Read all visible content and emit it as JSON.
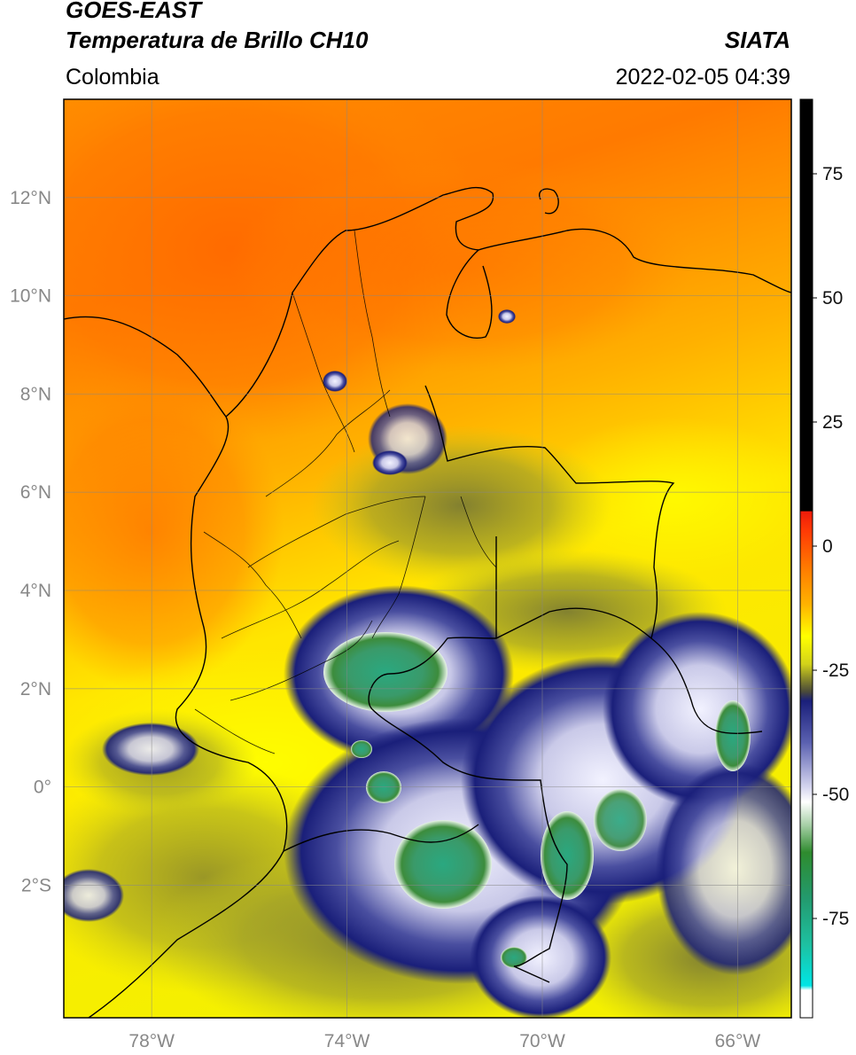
{
  "header": {
    "title_line1": "GOES-EAST",
    "title_line2": "Temperatura de Brillo CH10",
    "region": "Colombia",
    "brand": "SIATA",
    "datetime": "2022-02-05 04:39"
  },
  "map": {
    "lon_ticks": [
      "78°W",
      "74°W",
      "70°W",
      "66°W"
    ],
    "lat_ticks": [
      "12°N",
      "10°N",
      "8°N",
      "6°N",
      "4°N",
      "2°N",
      "0°",
      "2°S"
    ],
    "extent": {
      "lon_min": -79.8,
      "lon_max": -64.9,
      "lat_min": -4.7,
      "lat_max": 14.0
    }
  },
  "colorbar": {
    "ticks": [
      "75",
      "50",
      "25",
      "0",
      "-25",
      "-50",
      "-75"
    ],
    "colors": {
      "black": "#000000",
      "red": "#ee1c0a",
      "orange": "#ff8a00",
      "yellow": "#ffff00",
      "olive": "#8c8c28",
      "navy": "#1a1f7a",
      "white": "#ffffff",
      "green": "#2e8b2e",
      "teal": "#1ec0a0",
      "cyan": "#00e5e5"
    }
  }
}
